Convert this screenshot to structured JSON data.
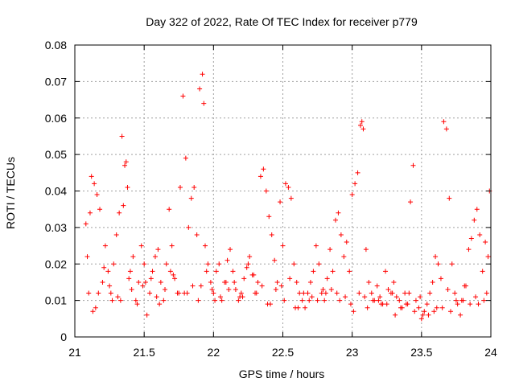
{
  "chart_data": {
    "type": "scatter",
    "title": "Day 322 of 2022, Rate Of TEC Index for receiver p779",
    "xlabel": "GPS time / hours",
    "ylabel": "ROTI / TECUs",
    "xlim": [
      21,
      24
    ],
    "ylim": [
      0,
      0.08
    ],
    "grid": true,
    "marker": "+",
    "colors": {
      "points": "#ff0000",
      "grid": "#a0a0a0",
      "axis": "#000000"
    },
    "x_ticks": [
      21,
      21.5,
      22,
      22.5,
      23,
      23.5,
      24
    ],
    "x_tick_labels": [
      "21",
      "21.5",
      "22",
      "22.5",
      "23",
      "23.5",
      "24"
    ],
    "y_ticks": [
      0,
      0.01,
      0.02,
      0.03,
      0.04,
      0.05,
      0.06,
      0.07,
      0.08
    ],
    "y_tick_labels": [
      "0",
      "0.01",
      "0.02",
      "0.03",
      "0.04",
      "0.05",
      "0.06",
      "0.07",
      "0.08"
    ],
    "series": [
      {
        "name": "ROTI",
        "x": [
          21.08,
          21.09,
          21.11,
          21.12,
          21.14,
          21.16,
          21.18,
          21.2,
          21.22,
          21.24,
          21.26,
          21.28,
          21.3,
          21.32,
          21.34,
          21.35,
          21.36,
          21.37,
          21.38,
          21.4,
          21.42,
          21.44,
          21.46,
          21.48,
          21.5,
          21.52,
          21.54,
          21.56,
          21.58,
          21.6,
          21.62,
          21.64,
          21.66,
          21.68,
          21.7,
          21.72,
          21.74,
          21.76,
          21.78,
          21.8,
          21.82,
          21.84,
          21.86,
          21.88,
          21.9,
          21.92,
          21.93,
          21.94,
          21.96,
          21.98,
          22.0,
          22.02,
          22.04,
          22.06,
          22.08,
          22.1,
          22.12,
          22.14,
          22.16,
          22.18,
          22.2,
          22.22,
          22.24,
          22.26,
          22.28,
          22.3,
          22.32,
          22.34,
          22.36,
          22.38,
          22.4,
          22.42,
          22.44,
          22.46,
          22.48,
          22.5,
          22.52,
          22.54,
          22.56,
          22.58,
          22.6,
          22.62,
          22.64,
          22.66,
          22.68,
          22.7,
          22.72,
          22.74,
          22.76,
          22.78,
          22.8,
          22.82,
          22.84,
          22.86,
          22.88,
          22.9,
          22.92,
          22.94,
          22.96,
          22.98,
          23.0,
          23.02,
          23.04,
          23.06,
          23.07,
          23.08,
          23.1,
          23.12,
          23.14,
          23.16,
          23.18,
          23.2,
          23.22,
          23.24,
          23.26,
          23.28,
          23.3,
          23.32,
          23.34,
          23.36,
          23.38,
          23.4,
          23.42,
          23.44,
          23.46,
          23.48,
          23.5,
          23.52,
          23.54,
          23.56,
          23.58,
          23.6,
          23.62,
          23.64,
          23.66,
          23.68,
          23.7,
          23.72,
          23.74,
          23.76,
          23.78,
          23.8,
          23.82,
          23.84,
          23.86,
          23.88,
          23.9,
          23.92,
          23.94,
          23.96,
          23.98,
          23.99,
          21.1,
          21.15,
          21.25,
          21.33,
          21.45,
          21.55,
          21.65,
          21.75,
          21.85,
          21.95,
          22.05,
          22.15,
          22.25,
          22.35,
          22.45,
          22.55,
          22.65,
          22.75,
          22.85,
          22.95,
          23.05,
          23.15,
          23.25,
          23.35,
          23.45,
          23.55,
          23.65,
          23.75,
          23.85,
          23.95,
          21.13,
          21.21,
          21.31,
          21.41,
          21.51,
          21.61,
          21.71,
          21.81,
          21.91,
          22.01,
          22.11,
          22.21,
          22.31,
          22.41,
          22.51,
          22.61,
          22.71,
          22.81,
          22.91,
          23.01,
          23.11,
          23.21,
          23.31,
          23.41,
          23.51,
          23.61,
          23.71,
          23.81,
          23.91,
          21.17,
          21.27,
          21.39,
          21.49,
          21.59,
          21.69,
          21.79,
          21.89,
          21.99,
          22.09,
          22.19,
          22.29,
          22.39,
          22.49,
          22.59,
          22.69,
          22.79,
          22.89,
          22.99,
          23.09,
          23.19,
          23.29,
          23.39,
          23.49,
          23.59,
          23.69,
          23.79,
          23.89,
          23.97
        ],
        "y": [
          0.031,
          0.022,
          0.034,
          0.044,
          0.042,
          0.039,
          0.035,
          0.015,
          0.025,
          0.018,
          0.012,
          0.02,
          0.028,
          0.034,
          0.055,
          0.036,
          0.047,
          0.048,
          0.041,
          0.018,
          0.022,
          0.01,
          0.015,
          0.025,
          0.02,
          0.006,
          0.012,
          0.018,
          0.022,
          0.024,
          0.015,
          0.01,
          0.02,
          0.035,
          0.025,
          0.016,
          0.012,
          0.041,
          0.066,
          0.049,
          0.03,
          0.038,
          0.041,
          0.028,
          0.068,
          0.072,
          0.064,
          0.025,
          0.02,
          0.015,
          0.012,
          0.018,
          0.02,
          0.01,
          0.015,
          0.021,
          0.024,
          0.018,
          0.013,
          0.01,
          0.012,
          0.016,
          0.019,
          0.022,
          0.017,
          0.012,
          0.015,
          0.044,
          0.046,
          0.04,
          0.033,
          0.028,
          0.021,
          0.015,
          0.037,
          0.025,
          0.042,
          0.041,
          0.038,
          0.02,
          0.015,
          0.012,
          0.01,
          0.008,
          0.012,
          0.015,
          0.018,
          0.025,
          0.02,
          0.012,
          0.01,
          0.016,
          0.024,
          0.018,
          0.032,
          0.034,
          0.028,
          0.022,
          0.026,
          0.018,
          0.039,
          0.042,
          0.045,
          0.058,
          0.059,
          0.057,
          0.024,
          0.015,
          0.012,
          0.01,
          0.014,
          0.011,
          0.009,
          0.018,
          0.013,
          0.012,
          0.015,
          0.011,
          0.01,
          0.008,
          0.012,
          0.009,
          0.037,
          0.047,
          0.01,
          0.008,
          0.005,
          0.007,
          0.009,
          0.012,
          0.015,
          0.022,
          0.02,
          0.016,
          0.059,
          0.057,
          0.038,
          0.02,
          0.012,
          0.009,
          0.006,
          0.01,
          0.014,
          0.024,
          0.027,
          0.032,
          0.035,
          0.028,
          0.018,
          0.026,
          0.022,
          0.04,
          0.012,
          0.008,
          0.014,
          0.01,
          0.009,
          0.016,
          0.013,
          0.012,
          0.014,
          0.018,
          0.011,
          0.015,
          0.02,
          0.014,
          0.013,
          0.016,
          0.012,
          0.01,
          0.013,
          0.011,
          0.012,
          0.01,
          0.009,
          0.008,
          0.007,
          0.006,
          0.008,
          0.01,
          0.009,
          0.01,
          0.007,
          0.019,
          0.011,
          0.013,
          0.015,
          0.009,
          0.017,
          0.012,
          0.014,
          0.01,
          0.013,
          0.011,
          0.012,
          0.009,
          0.01,
          0.008,
          0.011,
          0.012,
          0.01,
          0.007,
          0.008,
          0.009,
          0.006,
          0.012,
          0.006,
          0.008,
          0.007,
          0.014,
          0.009,
          0.012,
          0.01,
          0.016,
          0.014,
          0.011,
          0.018,
          0.012,
          0.01,
          0.013,
          0.015,
          0.011,
          0.017,
          0.009,
          0.014,
          0.008,
          0.01,
          0.013,
          0.012,
          0.009,
          0.011,
          0.01,
          0.012,
          0.009,
          0.011,
          0.007,
          0.013,
          0.01,
          0.011,
          0.012
        ]
      }
    ]
  }
}
